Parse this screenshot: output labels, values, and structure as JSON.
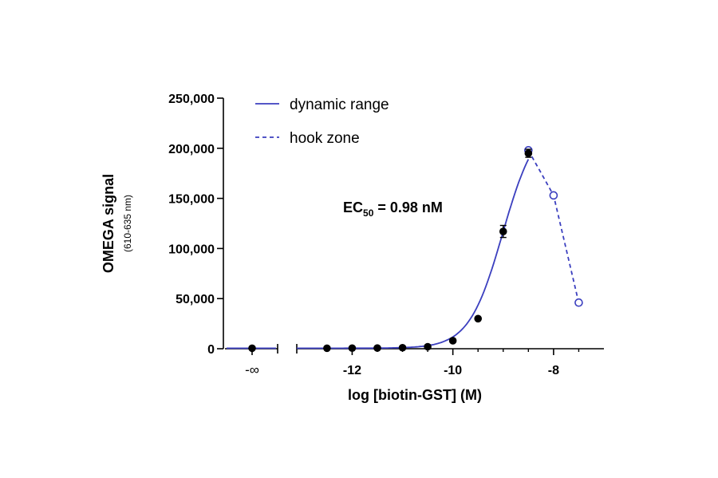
{
  "chart_data": {
    "type": "scatter",
    "ylabel": "OMEGA signal",
    "ylabel_sub": "(610-635 nm)",
    "xlabel": "log [biotin-GST] (M)",
    "ylim": [
      0,
      250000
    ],
    "y_ticks": [
      0,
      50000,
      100000,
      150000,
      200000,
      250000
    ],
    "y_tick_labels": [
      "0",
      "50,000",
      "100,000",
      "150,000",
      "200,000",
      "250,000"
    ],
    "x_neginf_label": "-∞",
    "xlim": [
      -13.1,
      -7.0
    ],
    "x_ticks": [
      -12,
      -10,
      -8
    ],
    "x_tick_labels": [
      "-12",
      "-10",
      "-8"
    ],
    "x_minor_ticks": [
      -12.5,
      -11.5,
      -11,
      -10.5,
      -9.5,
      -9,
      -8.5,
      -7.5
    ],
    "annotation": {
      "prefix": "EC",
      "subscript": "50",
      "suffix": " = 0.98 nM"
    },
    "legend": {
      "placement": "top-left",
      "entries": [
        {
          "label": "dynamic range",
          "style": "solid"
        },
        {
          "label": "hook zone",
          "style": "dashed"
        }
      ]
    },
    "colors": {
      "curve": "#3b3fbf",
      "filled_marker": "#000000",
      "open_marker": "#3b3fbf",
      "axis": "#000000"
    },
    "series": [
      {
        "points_style": "filled",
        "points": [
          {
            "x": "-inf",
            "y": 500
          },
          {
            "x": -12.5,
            "y": 500
          },
          {
            "x": -12.0,
            "y": 600
          },
          {
            "x": -11.5,
            "y": 700
          },
          {
            "x": -11.0,
            "y": 1000
          },
          {
            "x": -10.5,
            "y": 2000
          },
          {
            "x": -10.0,
            "y": 8000
          },
          {
            "x": -9.5,
            "y": 30000
          },
          {
            "x": -9.0,
            "y": 117000,
            "err": 6000
          },
          {
            "x": -8.5,
            "y": 195000,
            "err": 4000
          }
        ]
      },
      {
        "points_style": "open",
        "points": [
          {
            "x": -8.5,
            "y": 198000
          },
          {
            "x": -8.0,
            "y": 153000
          },
          {
            "x": -7.5,
            "y": 46000
          }
        ]
      }
    ],
    "fit": {
      "bottom": 500,
      "top": 230000,
      "log_ec50": -9.01,
      "hill": 1.3,
      "x_start": -13.1,
      "x_end": -8.5
    }
  }
}
